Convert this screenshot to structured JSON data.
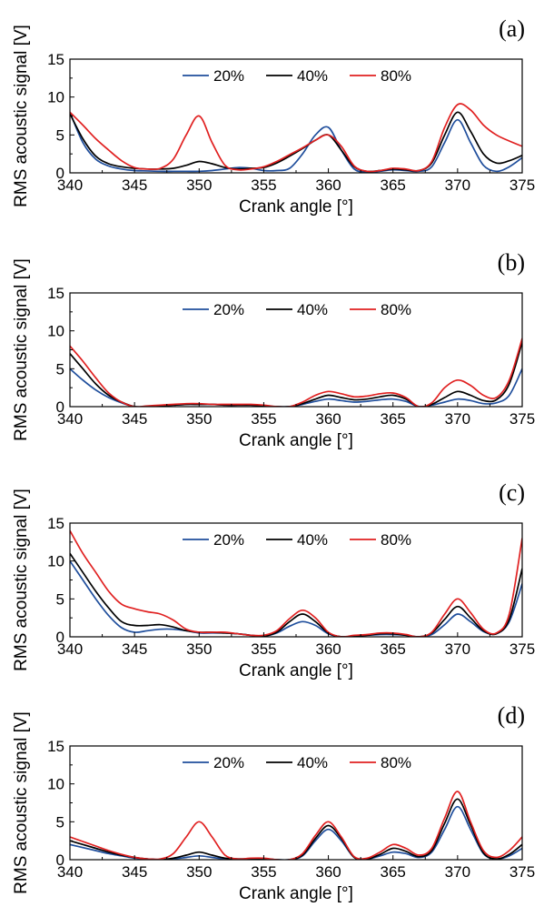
{
  "chart_data": [
    {
      "type": "line",
      "panel_label": "(a)",
      "xlabel": "Crank angle [°]",
      "ylabel": "RMS acoustic signal [V]",
      "xlim": [
        340,
        375
      ],
      "ylim": [
        0,
        15
      ],
      "xticks": [
        340,
        345,
        350,
        355,
        360,
        365,
        370,
        375
      ],
      "yticks": [
        0,
        5,
        10,
        15
      ],
      "legend_position": "top-center",
      "grid": false,
      "series": [
        {
          "name": "20%",
          "color": "#1f4e9c",
          "x": [
            340,
            341,
            342,
            343,
            344,
            345,
            346,
            347,
            348,
            349,
            350,
            351,
            352,
            353,
            354,
            355,
            356,
            357,
            358,
            359,
            360,
            361,
            362,
            363,
            364,
            365,
            366,
            367,
            368,
            369,
            370,
            371,
            372,
            373,
            374,
            375
          ],
          "y": [
            8.0,
            4.0,
            1.8,
            0.9,
            0.5,
            0.3,
            0.25,
            0.2,
            0.2,
            0.2,
            0.2,
            0.3,
            0.5,
            0.7,
            0.6,
            0.3,
            0.3,
            0.6,
            2.5,
            5.0,
            6.0,
            3.0,
            0.5,
            0.1,
            0.2,
            0.4,
            0.3,
            0.2,
            0.8,
            4.0,
            7.0,
            4.0,
            1.0,
            0.2,
            0.8,
            2.0
          ]
        },
        {
          "name": "40%",
          "color": "#000000",
          "x": [
            340,
            341,
            342,
            343,
            344,
            345,
            346,
            347,
            348,
            349,
            350,
            351,
            352,
            353,
            354,
            355,
            356,
            357,
            358,
            359,
            360,
            361,
            362,
            363,
            364,
            365,
            366,
            367,
            368,
            369,
            370,
            371,
            372,
            373,
            374,
            375
          ],
          "y": [
            7.8,
            4.5,
            2.2,
            1.2,
            0.8,
            0.6,
            0.5,
            0.5,
            0.6,
            1.0,
            1.5,
            1.2,
            0.7,
            0.5,
            0.6,
            0.7,
            1.3,
            2.2,
            3.2,
            4.3,
            5.0,
            3.0,
            0.8,
            0.2,
            0.3,
            0.5,
            0.4,
            0.3,
            1.3,
            5.0,
            8.0,
            5.5,
            2.5,
            1.3,
            1.6,
            2.3
          ]
        },
        {
          "name": "80%",
          "color": "#e02020",
          "x": [
            340,
            341,
            342,
            343,
            344,
            345,
            346,
            347,
            348,
            349,
            350,
            351,
            352,
            353,
            354,
            355,
            356,
            357,
            358,
            359,
            360,
            361,
            362,
            363,
            364,
            365,
            366,
            367,
            368,
            369,
            370,
            371,
            372,
            373,
            374,
            375
          ],
          "y": [
            8.0,
            6.3,
            4.5,
            3.0,
            1.6,
            0.7,
            0.5,
            0.6,
            1.8,
            5.0,
            7.5,
            4.0,
            1.0,
            0.4,
            0.5,
            0.8,
            1.5,
            2.4,
            3.3,
            4.3,
            5.0,
            3.5,
            0.9,
            0.2,
            0.3,
            0.6,
            0.5,
            0.3,
            1.5,
            6.0,
            9.0,
            8.3,
            6.3,
            5.0,
            4.2,
            3.5
          ]
        }
      ]
    },
    {
      "type": "line",
      "panel_label": "(b)",
      "xlabel": "Crank angle [°]",
      "ylabel": "RMS acoustic signal [V]",
      "xlim": [
        340,
        375
      ],
      "ylim": [
        0,
        15
      ],
      "xticks": [
        340,
        345,
        350,
        355,
        360,
        365,
        370,
        375
      ],
      "yticks": [
        0,
        5,
        10,
        15
      ],
      "legend_position": "top-center",
      "grid": false,
      "series": [
        {
          "name": "20%",
          "color": "#1f4e9c",
          "x": [
            340,
            341,
            342,
            343,
            344,
            345,
            346,
            347,
            348,
            349,
            350,
            351,
            352,
            353,
            354,
            355,
            356,
            357,
            358,
            359,
            360,
            361,
            362,
            363,
            364,
            365,
            366,
            367,
            368,
            369,
            370,
            371,
            372,
            373,
            374,
            375
          ],
          "y": [
            5.0,
            3.5,
            2.2,
            1.2,
            0.5,
            0.0,
            0.0,
            0.1,
            0.2,
            0.3,
            0.3,
            0.3,
            0.2,
            0.2,
            0.2,
            0.1,
            0.0,
            0.0,
            0.3,
            0.7,
            1.0,
            0.8,
            0.6,
            0.7,
            0.9,
            1.0,
            0.7,
            0.0,
            0.2,
            0.6,
            1.0,
            0.8,
            0.4,
            0.5,
            1.5,
            5.0
          ]
        },
        {
          "name": "40%",
          "color": "#000000",
          "x": [
            340,
            341,
            342,
            343,
            344,
            345,
            346,
            347,
            348,
            349,
            350,
            351,
            352,
            353,
            354,
            355,
            356,
            357,
            358,
            359,
            360,
            361,
            362,
            363,
            364,
            365,
            366,
            367,
            368,
            369,
            370,
            371,
            372,
            373,
            374,
            375
          ],
          "y": [
            7.0,
            5.0,
            3.0,
            1.5,
            0.6,
            0.0,
            0.0,
            0.1,
            0.2,
            0.3,
            0.3,
            0.3,
            0.2,
            0.2,
            0.2,
            0.1,
            0.0,
            0.0,
            0.4,
            1.0,
            1.5,
            1.2,
            0.9,
            1.0,
            1.3,
            1.5,
            1.0,
            0.0,
            0.3,
            1.2,
            2.0,
            1.5,
            0.8,
            0.9,
            3.0,
            8.5
          ]
        },
        {
          "name": "80%",
          "color": "#e02020",
          "x": [
            340,
            341,
            342,
            343,
            344,
            345,
            346,
            347,
            348,
            349,
            350,
            351,
            352,
            353,
            354,
            355,
            356,
            357,
            358,
            359,
            360,
            361,
            362,
            363,
            364,
            365,
            366,
            367,
            368,
            369,
            370,
            371,
            372,
            373,
            374,
            375
          ],
          "y": [
            8.0,
            6.0,
            3.8,
            1.8,
            0.6,
            0.0,
            0.1,
            0.2,
            0.3,
            0.4,
            0.4,
            0.3,
            0.3,
            0.3,
            0.3,
            0.2,
            0.0,
            0.0,
            0.6,
            1.5,
            2.0,
            1.7,
            1.3,
            1.4,
            1.7,
            1.8,
            1.2,
            0.0,
            0.5,
            2.5,
            3.5,
            2.8,
            1.5,
            1.2,
            3.5,
            9.0
          ]
        }
      ]
    },
    {
      "type": "line",
      "panel_label": "(c)",
      "xlabel": "Crank angle [°]",
      "ylabel": "RMS acoustic signal [V]",
      "xlim": [
        340,
        375
      ],
      "ylim": [
        0,
        15
      ],
      "xticks": [
        340,
        345,
        350,
        355,
        360,
        365,
        370,
        375
      ],
      "yticks": [
        0,
        5,
        10,
        15
      ],
      "legend_position": "top-center",
      "grid": false,
      "series": [
        {
          "name": "20%",
          "color": "#1f4e9c",
          "x": [
            340,
            341,
            342,
            343,
            344,
            345,
            346,
            347,
            348,
            349,
            350,
            351,
            352,
            353,
            354,
            355,
            356,
            357,
            358,
            359,
            360,
            361,
            362,
            363,
            364,
            365,
            366,
            367,
            368,
            369,
            370,
            371,
            372,
            373,
            374,
            375
          ],
          "y": [
            10.0,
            7.5,
            5.0,
            2.8,
            1.2,
            0.6,
            0.8,
            1.0,
            1.0,
            0.8,
            0.5,
            0.5,
            0.5,
            0.4,
            0.2,
            0.1,
            0.5,
            1.4,
            2.0,
            1.5,
            0.4,
            0.0,
            0.1,
            0.2,
            0.3,
            0.3,
            0.2,
            0.0,
            0.3,
            1.6,
            3.0,
            2.0,
            0.7,
            0.4,
            2.0,
            7.0
          ]
        },
        {
          "name": "40%",
          "color": "#000000",
          "x": [
            340,
            341,
            342,
            343,
            344,
            345,
            346,
            347,
            348,
            349,
            350,
            351,
            352,
            353,
            354,
            355,
            356,
            357,
            358,
            359,
            360,
            361,
            362,
            363,
            364,
            365,
            366,
            367,
            368,
            369,
            370,
            371,
            372,
            373,
            374,
            375
          ],
          "y": [
            11.0,
            8.5,
            6.0,
            3.8,
            2.0,
            1.5,
            1.5,
            1.6,
            1.3,
            0.8,
            0.6,
            0.6,
            0.5,
            0.4,
            0.2,
            0.1,
            0.6,
            2.0,
            3.0,
            2.0,
            0.5,
            0.0,
            0.1,
            0.2,
            0.4,
            0.4,
            0.2,
            0.0,
            0.5,
            2.3,
            4.0,
            2.5,
            0.8,
            0.4,
            2.3,
            9.0
          ]
        },
        {
          "name": "80%",
          "color": "#e02020",
          "x": [
            340,
            341,
            342,
            343,
            344,
            345,
            346,
            347,
            348,
            349,
            350,
            351,
            352,
            353,
            354,
            355,
            356,
            357,
            358,
            359,
            360,
            361,
            362,
            363,
            364,
            365,
            366,
            367,
            368,
            369,
            370,
            371,
            372,
            373,
            374,
            375
          ],
          "y": [
            14.0,
            11.0,
            8.5,
            6.0,
            4.3,
            3.7,
            3.3,
            3.0,
            2.2,
            1.0,
            0.6,
            0.6,
            0.6,
            0.4,
            0.2,
            0.2,
            0.8,
            2.4,
            3.5,
            2.5,
            0.6,
            0.0,
            0.2,
            0.3,
            0.5,
            0.5,
            0.3,
            0.0,
            0.6,
            3.0,
            5.0,
            3.2,
            1.0,
            0.5,
            3.0,
            13.0
          ]
        }
      ]
    },
    {
      "type": "line",
      "panel_label": "(d)",
      "xlabel": "Crank angle [°]",
      "ylabel": "RMS acoustic signal [V]",
      "xlim": [
        340,
        375
      ],
      "ylim": [
        0,
        15
      ],
      "xticks": [
        340,
        345,
        350,
        355,
        360,
        365,
        370,
        375
      ],
      "yticks": [
        0,
        5,
        10,
        15
      ],
      "legend_position": "top-center",
      "grid": false,
      "series": [
        {
          "name": "20%",
          "color": "#1f4e9c",
          "x": [
            340,
            341,
            342,
            343,
            344,
            345,
            346,
            347,
            348,
            349,
            350,
            351,
            352,
            353,
            354,
            355,
            356,
            357,
            358,
            359,
            360,
            361,
            362,
            363,
            364,
            365,
            366,
            367,
            368,
            369,
            370,
            371,
            372,
            373,
            374,
            375
          ],
          "y": [
            2.0,
            1.6,
            1.2,
            0.8,
            0.5,
            0.2,
            0.1,
            0.0,
            0.1,
            0.3,
            0.5,
            0.3,
            0.1,
            0.1,
            0.1,
            0.1,
            0.0,
            0.0,
            0.5,
            2.5,
            4.0,
            2.5,
            0.3,
            0.1,
            0.5,
            1.0,
            0.8,
            0.3,
            1.0,
            4.0,
            7.0,
            4.0,
            0.8,
            0.1,
            0.5,
            1.5
          ]
        },
        {
          "name": "40%",
          "color": "#000000",
          "x": [
            340,
            341,
            342,
            343,
            344,
            345,
            346,
            347,
            348,
            349,
            350,
            351,
            352,
            353,
            354,
            355,
            356,
            357,
            358,
            359,
            360,
            361,
            362,
            363,
            364,
            365,
            366,
            367,
            368,
            369,
            370,
            371,
            372,
            373,
            374,
            375
          ],
          "y": [
            2.5,
            2.0,
            1.5,
            1.0,
            0.6,
            0.3,
            0.1,
            0.0,
            0.2,
            0.6,
            1.0,
            0.6,
            0.2,
            0.1,
            0.1,
            0.1,
            0.0,
            0.0,
            0.6,
            2.8,
            4.5,
            2.8,
            0.3,
            0.1,
            0.7,
            1.5,
            1.1,
            0.4,
            1.2,
            4.8,
            8.0,
            4.6,
            0.9,
            0.1,
            0.7,
            2.0
          ]
        },
        {
          "name": "80%",
          "color": "#e02020",
          "x": [
            340,
            341,
            342,
            343,
            344,
            345,
            346,
            347,
            348,
            349,
            350,
            351,
            352,
            353,
            354,
            355,
            356,
            357,
            358,
            359,
            360,
            361,
            362,
            363,
            364,
            365,
            366,
            367,
            368,
            369,
            370,
            371,
            372,
            373,
            374,
            375
          ],
          "y": [
            3.0,
            2.4,
            1.8,
            1.2,
            0.7,
            0.3,
            0.1,
            0.1,
            0.8,
            3.0,
            5.0,
            3.0,
            0.6,
            0.1,
            0.2,
            0.2,
            0.0,
            0.0,
            0.8,
            3.2,
            5.0,
            3.0,
            0.4,
            0.2,
            1.0,
            2.0,
            1.5,
            0.6,
            1.5,
            5.5,
            9.0,
            5.0,
            1.2,
            0.3,
            1.2,
            3.0
          ]
        }
      ]
    }
  ]
}
